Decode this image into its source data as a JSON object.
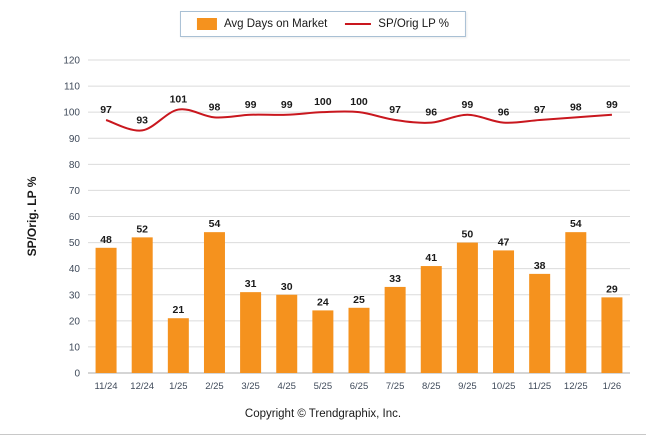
{
  "legend": {
    "bar_label": "Avg Days on Market",
    "line_label": "SP/Orig LP %"
  },
  "footer": {
    "copyright": "Copyright © Trendgraphix, Inc."
  },
  "colors": {
    "bar": "#F5921E",
    "line": "#C9171E",
    "grid": "#DBDBDB",
    "axis": "#ABABAB",
    "tick_text": "#3F4A5A",
    "label_text": "#1A1A1A"
  },
  "chart_data": {
    "type": "bar",
    "categories": [
      "11/24",
      "12/24",
      "1/25",
      "2/25",
      "3/25",
      "4/25",
      "5/25",
      "6/25",
      "7/25",
      "8/25",
      "9/25",
      "10/25",
      "11/25",
      "12/25",
      "1/26"
    ],
    "series": [
      {
        "name": "Avg Days on Market",
        "type": "bar",
        "values": [
          48,
          52,
          21,
          54,
          31,
          30,
          24,
          25,
          33,
          41,
          50,
          47,
          38,
          54,
          29
        ]
      },
      {
        "name": "SP/Orig LP %",
        "type": "line",
        "values": [
          97,
          93,
          101,
          98,
          99,
          99,
          100,
          100,
          97,
          96,
          99,
          96,
          97,
          98,
          99
        ]
      }
    ],
    "title": "",
    "xlabel": "",
    "ylabel": "SP/Orig. LP %",
    "ylim": [
      0,
      120
    ],
    "ytick_step": 10,
    "grid": true,
    "legend_position": "top"
  }
}
